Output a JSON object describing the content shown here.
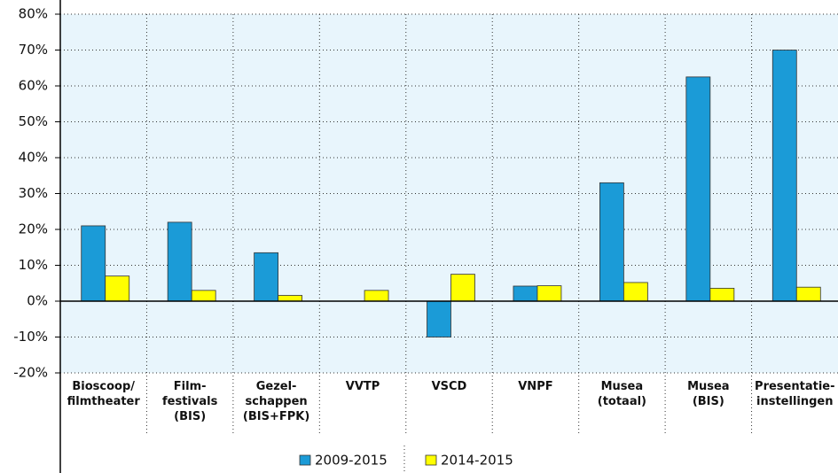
{
  "chart_data": {
    "type": "bar",
    "categories": [
      "Bioscoop/\nfilmtheater",
      "Film-\nfestivals\n(BIS)",
      "Gezel-\nschappen\n(BIS+FPK)",
      "VVTP",
      "VSCD",
      "VNPF",
      "Musea\n(totaal)",
      "Musea\n(BIS)",
      "Presentatie-\ninstellingen"
    ],
    "series": [
      {
        "name": "2009-2015",
        "color": "#1b9bd7",
        "values": [
          21,
          22,
          13.5,
          null,
          -10,
          4.2,
          33,
          62.5,
          70
        ]
      },
      {
        "name": "2014-2015",
        "color": "#ffff00",
        "values": [
          7,
          3,
          1.6,
          3,
          7.5,
          4.3,
          5.2,
          3.6,
          3.9
        ]
      }
    ],
    "ylim": [
      -20,
      80
    ],
    "yticks": [
      {
        "value": -20,
        "label": "-20%"
      },
      {
        "value": -10,
        "label": "-10%"
      },
      {
        "value": 0,
        "label": "0%"
      },
      {
        "value": 10,
        "label": "10%"
      },
      {
        "value": 20,
        "label": "20%"
      },
      {
        "value": 30,
        "label": "30%"
      },
      {
        "value": 40,
        "label": "40%"
      },
      {
        "value": 50,
        "label": "50%"
      },
      {
        "value": 60,
        "label": "60%"
      },
      {
        "value": 70,
        "label": "70%"
      },
      {
        "value": 80,
        "label": "80%"
      }
    ],
    "grid": true
  }
}
